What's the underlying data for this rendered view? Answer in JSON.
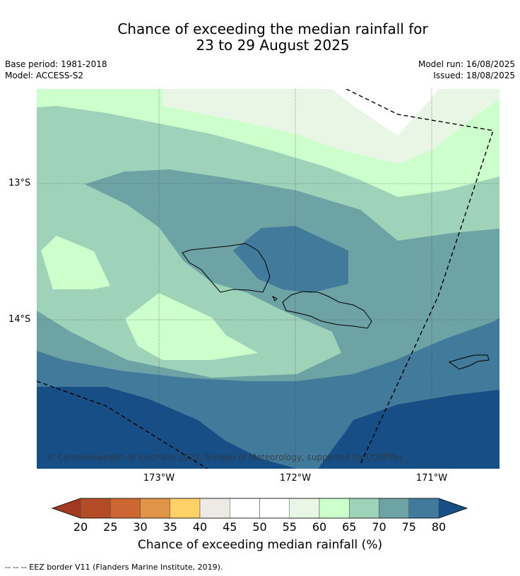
{
  "title_line1": "Chance of exceeding the median rainfall for",
  "title_line2": "23 to 29 August 2025",
  "meta_left": [
    "Base period: 1981-2018",
    "Model: ACCESS-S2"
  ],
  "meta_right": [
    "Model run: 16/08/2025",
    "Issued: 18/08/2025"
  ],
  "map": {
    "lat_labels": [
      "13°S",
      "14°S"
    ],
    "lon_labels": [
      "173°W",
      "172°W",
      "171°W"
    ],
    "copyright": "© Commonwealth of Australia 2025, Bureau of Meteorology, supported by COSPPac"
  },
  "colorbar": {
    "ticks": [
      "20",
      "25",
      "30",
      "35",
      "40",
      "45",
      "50",
      "55",
      "60",
      "65",
      "70",
      "75",
      "80"
    ],
    "colors": [
      "#b24b26",
      "#cd6633",
      "#e09448",
      "#fdd068",
      "#ede9e4",
      "#ffffff",
      "#ffffff",
      "#e9f6e6",
      "#ccffcc",
      "#9ed3ba",
      "#6da3a5",
      "#417a9a"
    ],
    "under_color": "#a03a20",
    "over_color": "#174e85",
    "label": "Chance of exceeding median rainfall (%)"
  },
  "footnote": "--  --  -- EEZ border V11 (Flanders Marine Institute, 2019)."
}
